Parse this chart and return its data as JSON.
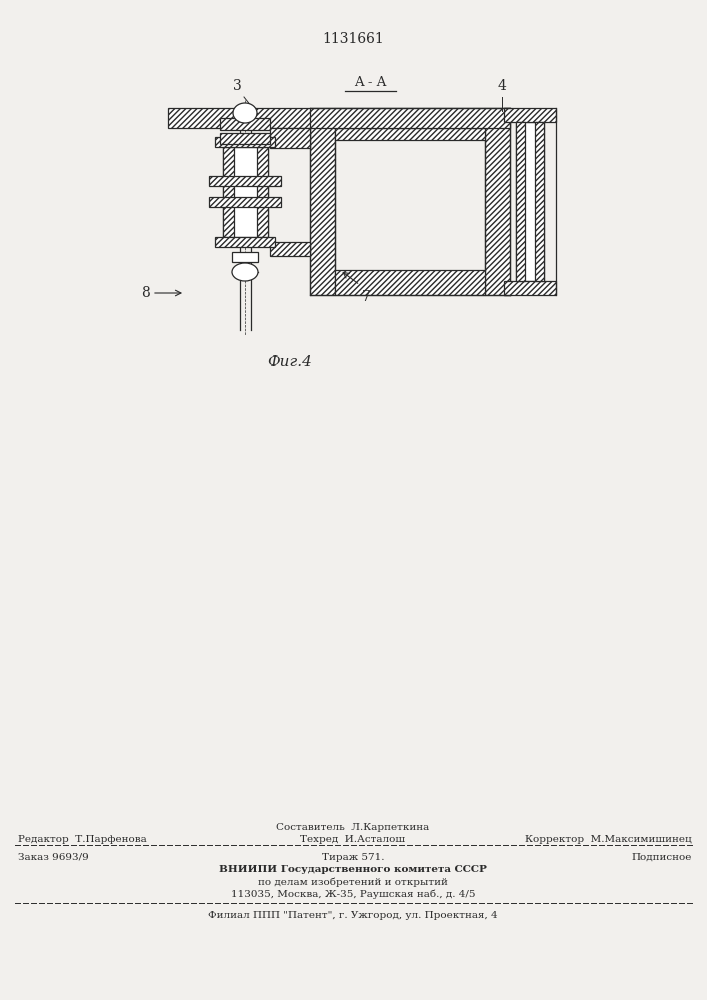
{
  "title": "1131661",
  "figure_label": "Фиг.4",
  "section_label": "A - A",
  "bg_color": "#f2f0ed",
  "line_color": "#2a2a2a",
  "footer_composer": "Составитель  Л.Карпеткина",
  "footer_editor": "Редактор  Т.Парфенова",
  "footer_techred": "Техред  И.Асталош",
  "footer_corrector": "Корректор  М.Максимишинец",
  "footer_order": "Заказ 9693/9",
  "footer_tirazh": "Тираж 571.",
  "footer_podpisnoe": "Подписное",
  "footer_vniipи": "ВНИИПИ Государственного комитета СССР",
  "footer_po_delam": "по делам изобретений и открытий",
  "footer_address": "113035, Москва, Ж-35, Раушская наб., д. 4/5",
  "footer_filial": "Филиал ППП \"Патент\", г. Ужгород, ул. Проектная, 4"
}
